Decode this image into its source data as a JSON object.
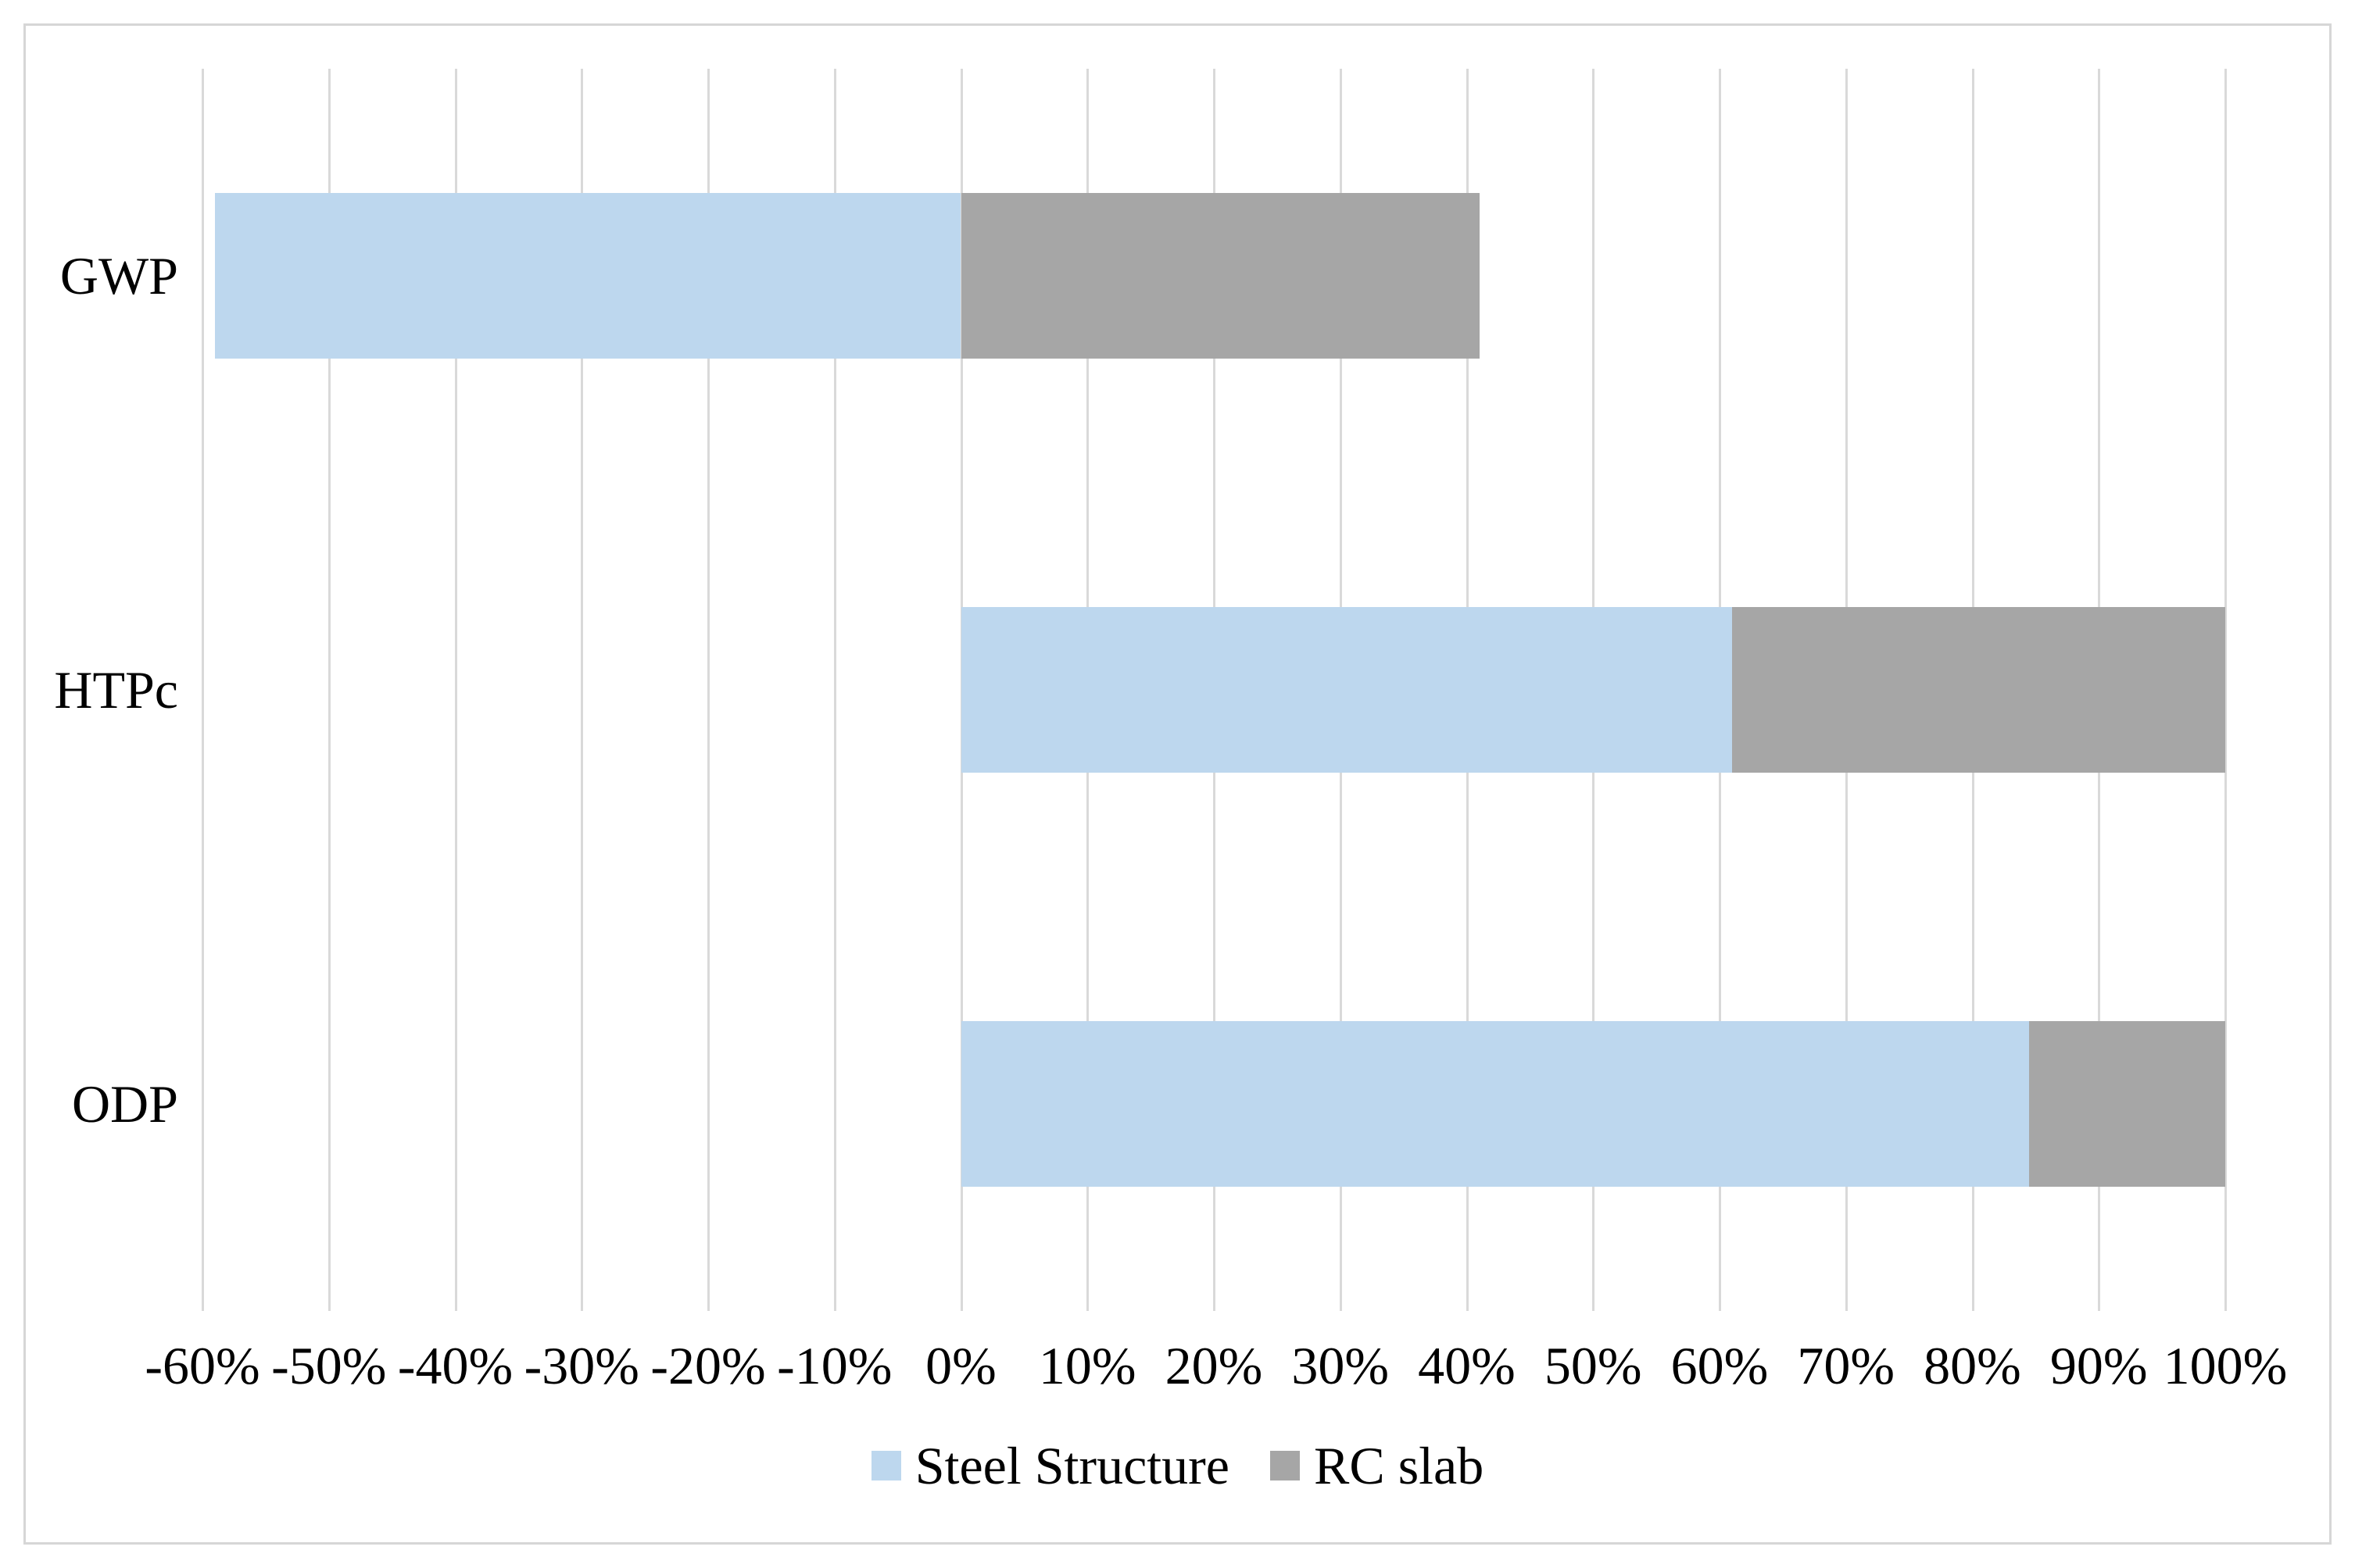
{
  "figure": {
    "background_color": "#FFFFFF",
    "border_color": "#D6D6D6"
  },
  "chart_data": {
    "type": "bar",
    "orientation": "horizontal",
    "stacked": true,
    "title": "",
    "xlabel": "",
    "ylabel": "",
    "categories": [
      "GWP",
      "HTPc",
      "ODP"
    ],
    "series": [
      {
        "name": "Steel Structure",
        "color": "#BDD7EE",
        "values": [
          -59,
          61,
          84.5
        ]
      },
      {
        "name": "RC slab",
        "color": "#A6A6A6",
        "values": [
          41,
          39,
          15.5
        ]
      }
    ],
    "x_axis": {
      "min": -60,
      "max": 100,
      "step": 10,
      "tick_labels": [
        "-60%",
        "-50%",
        "-40%",
        "-30%",
        "-20%",
        "-10%",
        "0%",
        "10%",
        "20%",
        "30%",
        "40%",
        "50%",
        "60%",
        "70%",
        "80%",
        "90%",
        "100%"
      ]
    },
    "gridlines": "vertical",
    "gridline_color": "#D9D9D9",
    "text_color": "#000000",
    "legend_position": "bottom"
  }
}
